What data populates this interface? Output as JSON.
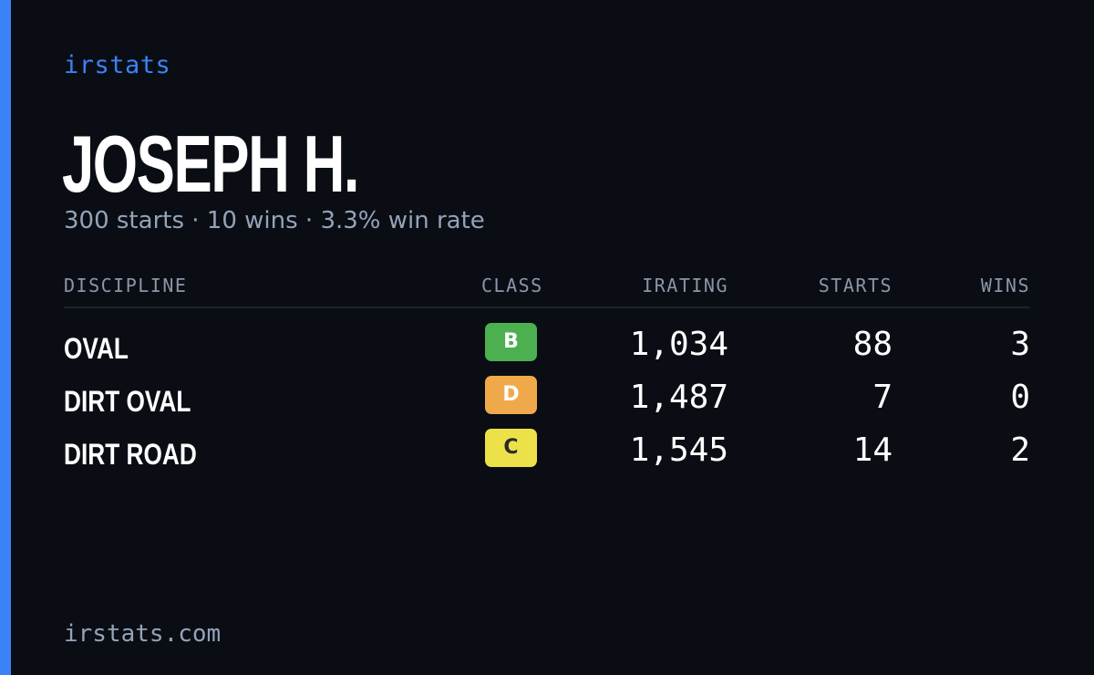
{
  "brand": "irstats",
  "driver": {
    "name": "JOSEPH H.",
    "summary": "300 starts · 10 wins · 3.3% win rate"
  },
  "table": {
    "headers": {
      "discipline": "DISCIPLINE",
      "class": "CLASS",
      "irating": "IRATING",
      "starts": "STARTS",
      "wins": "WINS"
    },
    "rows": [
      {
        "discipline": "OVAL",
        "class": "B",
        "class_color": "#4caf50",
        "class_text_color": "#ffffff",
        "irating": "1,034",
        "starts": "88",
        "wins": "3"
      },
      {
        "discipline": "DIRT OVAL",
        "class": "D",
        "class_color": "#f0a94a",
        "class_text_color": "#ffffff",
        "irating": "1,487",
        "starts": "7",
        "wins": "0"
      },
      {
        "discipline": "DIRT ROAD",
        "class": "C",
        "class_color": "#ede14a",
        "class_text_color": "#2a2a2a",
        "irating": "1,545",
        "starts": "14",
        "wins": "2"
      }
    ]
  },
  "footer": "irstats.com",
  "colors": {
    "background": "#0a0d14",
    "accent": "#3b82f6",
    "muted": "#94a3b8"
  }
}
